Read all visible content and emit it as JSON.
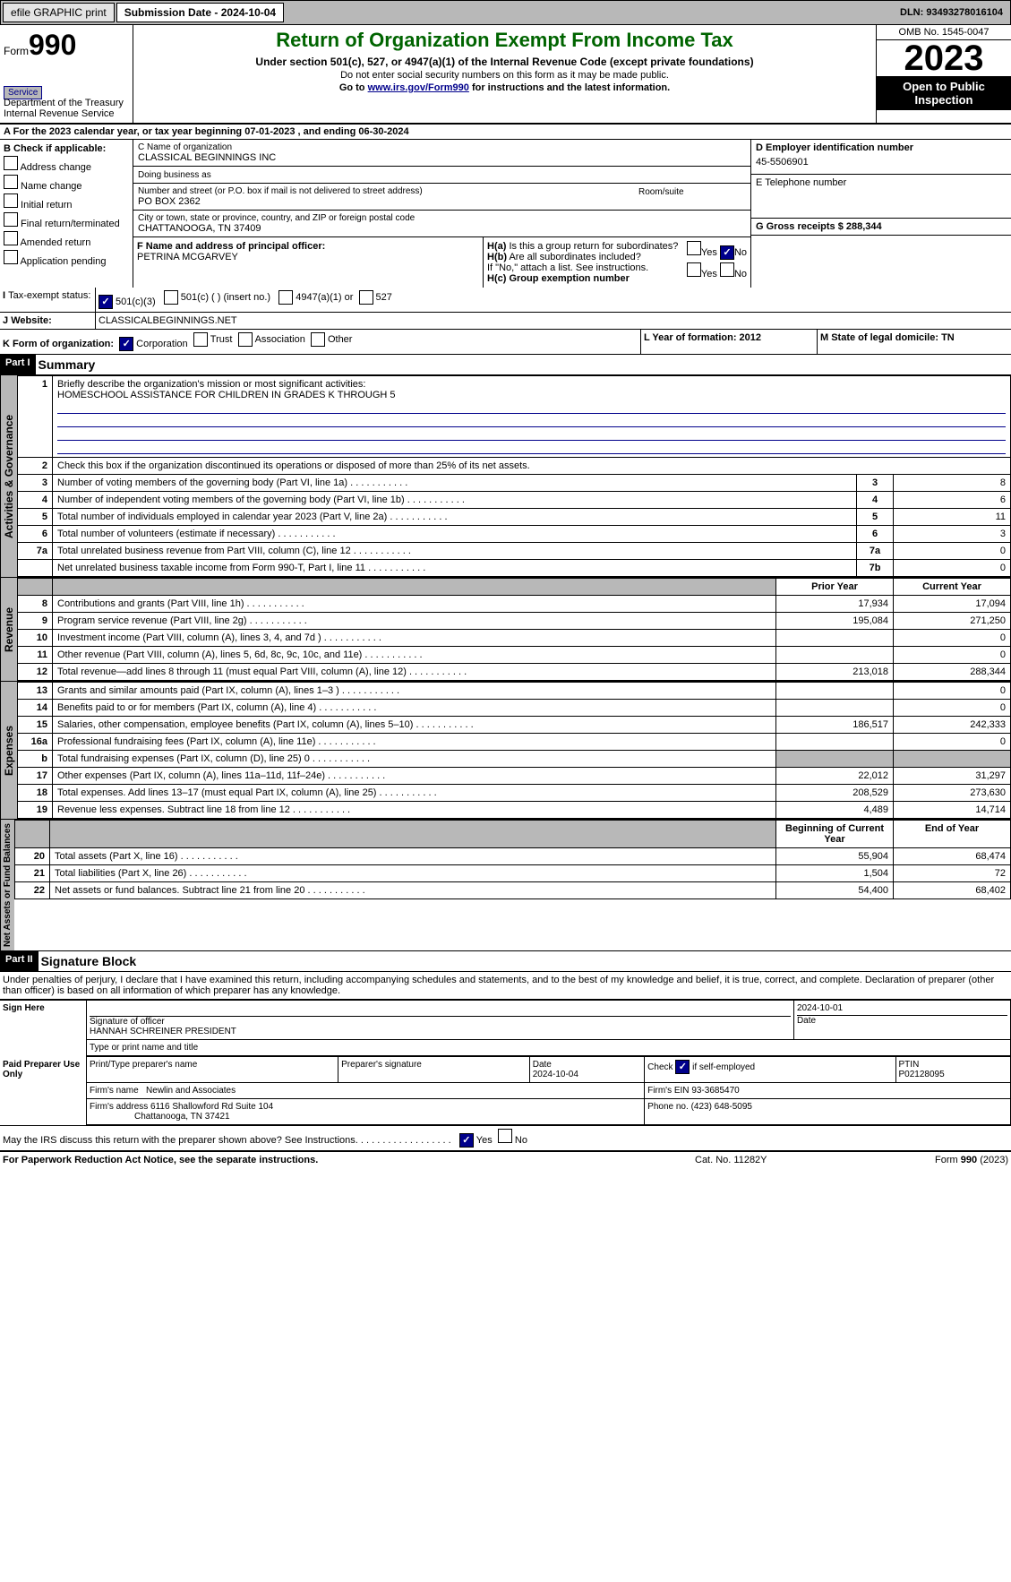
{
  "topbar": {
    "efile": "efile GRAPHIC print",
    "sub": "Submission Date - 2024-10-04",
    "dln": "DLN: 93493278016104"
  },
  "hdr": {
    "formword": "Form",
    "formnum": "990",
    "dept": "Department of the Treasury",
    "irs": "Internal Revenue Service",
    "title": "Return of Organization Exempt From Income Tax",
    "sub1": "Under section 501(c), 527, or 4947(a)(1) of the Internal Revenue Code (except private foundations)",
    "sub2": "Do not enter social security numbers on this form as it may be made public.",
    "sub3": "Go to ",
    "sub3link": "www.irs.gov/Form990",
    "sub3b": " for instructions and the latest information.",
    "omb": "OMB No. 1545-0047",
    "year": "2023",
    "openpub": "Open to Public Inspection"
  },
  "rowA": "For the 2023 calendar year, or tax year beginning 07-01-2023   , and ending 06-30-2024",
  "boxB": {
    "label": "B Check if applicable:",
    "opts": [
      "Address change",
      "Name change",
      "Initial return",
      "Final return/terminated",
      "Amended return",
      "Application pending"
    ]
  },
  "boxC": {
    "namelbl": "C Name of organization",
    "name": "CLASSICAL BEGINNINGS INC",
    "dba": "Doing business as",
    "addrlbl": "Number and street (or P.O. box if mail is not delivered to street address)",
    "addr": "PO BOX 2362",
    "room": "Room/suite",
    "citylbl": "City or town, state or province, country, and ZIP or foreign postal code",
    "city": "CHATTANOOGA, TN   37409"
  },
  "boxD": {
    "lbl": "D Employer identification number",
    "val": "45-5506901"
  },
  "boxE": {
    "lbl": "E Telephone number",
    "val": ""
  },
  "boxG": {
    "lbl": "G Gross receipts $",
    "val": "288,344"
  },
  "boxF": {
    "lbl": "F  Name and address of principal officer:",
    "val": "PETRINA MCGARVEY"
  },
  "boxH": {
    "a": "H(a)  Is this a group return for subordinates?",
    "b": "H(b)  Are all subordinates included?",
    "ifno": "If \"No,\" attach a list. See instructions.",
    "c": "H(c)  Group exemption number"
  },
  "rowI": {
    "lbl": "Tax-exempt status:",
    "o1": "501(c)(3)",
    "o2": "501(c) (  ) (insert no.)",
    "o3": "4947(a)(1) or",
    "o4": "527"
  },
  "rowJ": {
    "lbl": "Website:",
    "val": "CLASSICALBEGINNINGS.NET"
  },
  "rowK": {
    "lbl": "K Form of organization:",
    "o1": "Corporation",
    "o2": "Trust",
    "o3": "Association",
    "o4": "Other",
    "l": "L Year of formation: 2012",
    "m": "M State of legal domicile: TN"
  },
  "part1": {
    "hdr": "Part I",
    "title": "Summary",
    "l1": "Briefly describe the organization's mission or most significant activities:",
    "l1v": "HOMESCHOOL ASSISTANCE FOR CHILDREN IN GRADES K THROUGH 5",
    "l2": "Check this box      if the organization discontinued its operations or disposed of more than 25% of its net assets.",
    "rows_gov": [
      {
        "n": "3",
        "t": "Number of voting members of the governing body (Part VI, line 1a)",
        "box": "3",
        "v": "8"
      },
      {
        "n": "4",
        "t": "Number of independent voting members of the governing body (Part VI, line 1b)",
        "box": "4",
        "v": "6"
      },
      {
        "n": "5",
        "t": "Total number of individuals employed in calendar year 2023 (Part V, line 2a)",
        "box": "5",
        "v": "11"
      },
      {
        "n": "6",
        "t": "Total number of volunteers (estimate if necessary)",
        "box": "6",
        "v": "3"
      },
      {
        "n": "7a",
        "t": "Total unrelated business revenue from Part VIII, column (C), line 12",
        "box": "7a",
        "v": "0"
      },
      {
        "n": "",
        "t": "Net unrelated business taxable income from Form 990-T, Part I, line 11",
        "box": "7b",
        "v": "0"
      }
    ],
    "pyhdr": "Prior Year",
    "cyhdr": "Current Year",
    "rows_rev": [
      {
        "n": "8",
        "t": "Contributions and grants (Part VIII, line 1h)",
        "py": "17,934",
        "cy": "17,094"
      },
      {
        "n": "9",
        "t": "Program service revenue (Part VIII, line 2g)",
        "py": "195,084",
        "cy": "271,250"
      },
      {
        "n": "10",
        "t": "Investment income (Part VIII, column (A), lines 3, 4, and 7d )",
        "py": "",
        "cy": "0"
      },
      {
        "n": "11",
        "t": "Other revenue (Part VIII, column (A), lines 5, 6d, 8c, 9c, 10c, and 11e)",
        "py": "",
        "cy": "0"
      },
      {
        "n": "12",
        "t": "Total revenue—add lines 8 through 11 (must equal Part VIII, column (A), line 12)",
        "py": "213,018",
        "cy": "288,344"
      }
    ],
    "rows_exp": [
      {
        "n": "13",
        "t": "Grants and similar amounts paid (Part IX, column (A), lines 1–3 )",
        "py": "",
        "cy": "0"
      },
      {
        "n": "14",
        "t": "Benefits paid to or for members (Part IX, column (A), line 4)",
        "py": "",
        "cy": "0"
      },
      {
        "n": "15",
        "t": "Salaries, other compensation, employee benefits (Part IX, column (A), lines 5–10)",
        "py": "186,517",
        "cy": "242,333"
      },
      {
        "n": "16a",
        "t": "Professional fundraising fees (Part IX, column (A), line 11e)",
        "py": "",
        "cy": "0"
      },
      {
        "n": "b",
        "t": "Total fundraising expenses (Part IX, column (D), line 25) 0",
        "py": "",
        "cy": "",
        "shade": true
      },
      {
        "n": "17",
        "t": "Other expenses (Part IX, column (A), lines 11a–11d, 11f–24e)",
        "py": "22,012",
        "cy": "31,297"
      },
      {
        "n": "18",
        "t": "Total expenses. Add lines 13–17 (must equal Part IX, column (A), line 25)",
        "py": "208,529",
        "cy": "273,630"
      },
      {
        "n": "19",
        "t": "Revenue less expenses. Subtract line 18 from line 12",
        "py": "4,489",
        "cy": "14,714"
      }
    ],
    "bhdr": "Beginning of Current Year",
    "ehdr": "End of Year",
    "rows_na": [
      {
        "n": "20",
        "t": "Total assets (Part X, line 16)",
        "py": "55,904",
        "cy": "68,474"
      },
      {
        "n": "21",
        "t": "Total liabilities (Part X, line 26)",
        "py": "1,504",
        "cy": "72"
      },
      {
        "n": "22",
        "t": "Net assets or fund balances. Subtract line 21 from line 20",
        "py": "54,400",
        "cy": "68,402"
      }
    ],
    "side": {
      "gov": "Activities & Governance",
      "rev": "Revenue",
      "exp": "Expenses",
      "na": "Net Assets or Fund Balances"
    }
  },
  "part2": {
    "hdr": "Part II",
    "title": "Signature Block",
    "decl": "Under penalties of perjury, I declare that I have examined this return, including accompanying schedules and statements, and to the best of my knowledge and belief, it is true, correct, and complete. Declaration of preparer (other than officer) is based on all information of which preparer has any knowledge.",
    "sign": "Sign Here",
    "sigoff": "Signature of officer",
    "officer": "HANNAH SCHREINER  PRESIDENT",
    "typelbl": "Type or print name and title",
    "date": "2024-10-01",
    "datelbl": "Date",
    "paid": "Paid Preparer Use Only",
    "pname": "Print/Type preparer's name",
    "psig": "Preparer's signature",
    "pdate": "Date",
    "pdateval": "2024-10-04",
    "chkif": "Check",
    "selfemp": "if self-employed",
    "ptin": "PTIN",
    "ptinval": "P02128095",
    "firmname": "Firm's name",
    "firmnameval": "Newlin and Associates",
    "firmein": "Firm's EIN",
    "firmeinval": "93-3685470",
    "firmaddr": "Firm's address",
    "firmaddrval": "6116 Shallowford Rd Suite 104",
    "firmcity": "Chattanooga, TN   37421",
    "phone": "Phone no.",
    "phoneval": "(423) 648-5095",
    "discuss": "May the IRS discuss this return with the preparer shown above? See Instructions."
  },
  "footer": {
    "pra": "For Paperwork Reduction Act Notice, see the separate instructions.",
    "cat": "Cat. No. 11282Y",
    "form": "Form 990 (2023)"
  }
}
